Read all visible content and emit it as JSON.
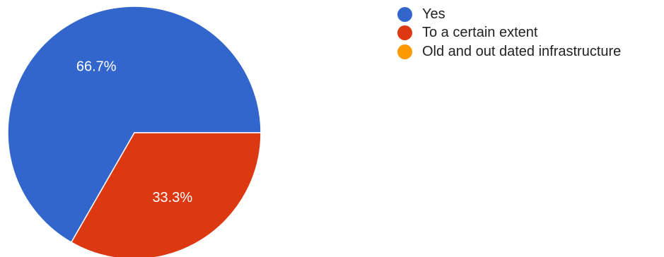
{
  "chart_data": {
    "type": "pie",
    "title": "",
    "legend_position": "top-right",
    "start_angle_deg": 0,
    "direction": "counterclockwise",
    "slices": [
      {
        "label": "Yes",
        "value": 66.7,
        "display": "66.7%",
        "color": "#3366cc"
      },
      {
        "label": "To a certain extent",
        "value": 33.3,
        "display": "33.3%",
        "color": "#dc3912"
      },
      {
        "label": "Old and out dated infrastructure",
        "value": 0,
        "display": "",
        "color": "#ff9900"
      }
    ]
  },
  "legend": {
    "items": [
      {
        "label": "Yes",
        "color": "#3366cc"
      },
      {
        "label": "To a certain extent",
        "color": "#dc3912"
      },
      {
        "label": "Old and out dated infrastructure",
        "color": "#ff9900"
      }
    ]
  }
}
